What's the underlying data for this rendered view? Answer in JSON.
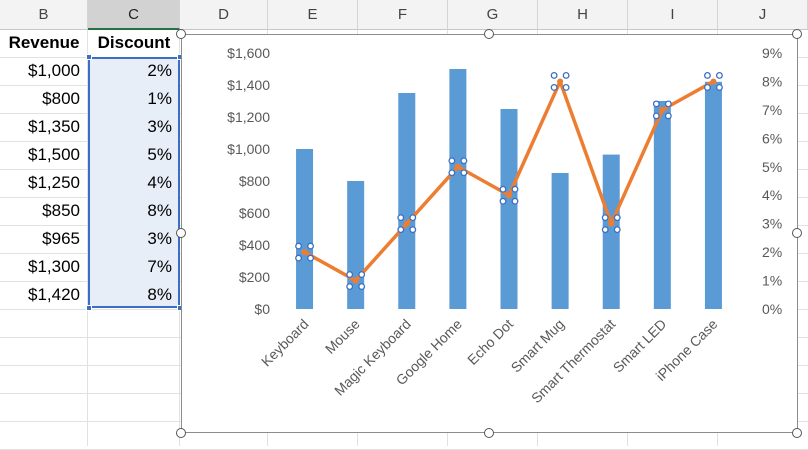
{
  "columns": [
    "B",
    "C",
    "D",
    "E",
    "F",
    "G",
    "H",
    "I",
    "J"
  ],
  "table": {
    "header_revenue": "Revenue",
    "header_discount": "Discount",
    "rows": [
      {
        "revenue": "$1,000",
        "discount": "2%"
      },
      {
        "revenue": "$800",
        "discount": "1%"
      },
      {
        "revenue": "$1,350",
        "discount": "3%"
      },
      {
        "revenue": "$1,500",
        "discount": "5%"
      },
      {
        "revenue": "$1,250",
        "discount": "4%"
      },
      {
        "revenue": "$850",
        "discount": "8%"
      },
      {
        "revenue": "$965",
        "discount": "3%"
      },
      {
        "revenue": "$1,300",
        "discount": "7%"
      },
      {
        "revenue": "$1,420",
        "discount": "8%"
      }
    ]
  },
  "colors": {
    "bar": "#5b9bd5",
    "line": "#ed7d31",
    "selection": "#3b6fc4"
  },
  "chart_data": {
    "type": "bar",
    "categories": [
      "Keyboard",
      "Mouse",
      "Magic Keyboard",
      "Google Home",
      "Echo Dot",
      "Smart Mug",
      "Smart Thermostat",
      "Smart LED",
      "iPhone Case"
    ],
    "series": [
      {
        "type": "bar",
        "axis": "left",
        "values": [
          1000,
          800,
          1350,
          1500,
          1250,
          850,
          965,
          1300,
          1420
        ]
      },
      {
        "type": "line",
        "axis": "right",
        "values": [
          0.02,
          0.01,
          0.03,
          0.05,
          0.04,
          0.08,
          0.03,
          0.07,
          0.08
        ]
      }
    ],
    "ylim": [
      0,
      1600
    ],
    "y2lim": [
      0,
      0.09
    ],
    "yticks": [
      "$0",
      "$200",
      "$400",
      "$600",
      "$800",
      "$1,000",
      "$1,200",
      "$1,400",
      "$1,600"
    ],
    "y2ticks": [
      "0%",
      "1%",
      "2%",
      "3%",
      "4%",
      "5%",
      "6%",
      "7%",
      "8%",
      "9%"
    ],
    "grid": false,
    "legend": "none",
    "selected_series": "line"
  }
}
